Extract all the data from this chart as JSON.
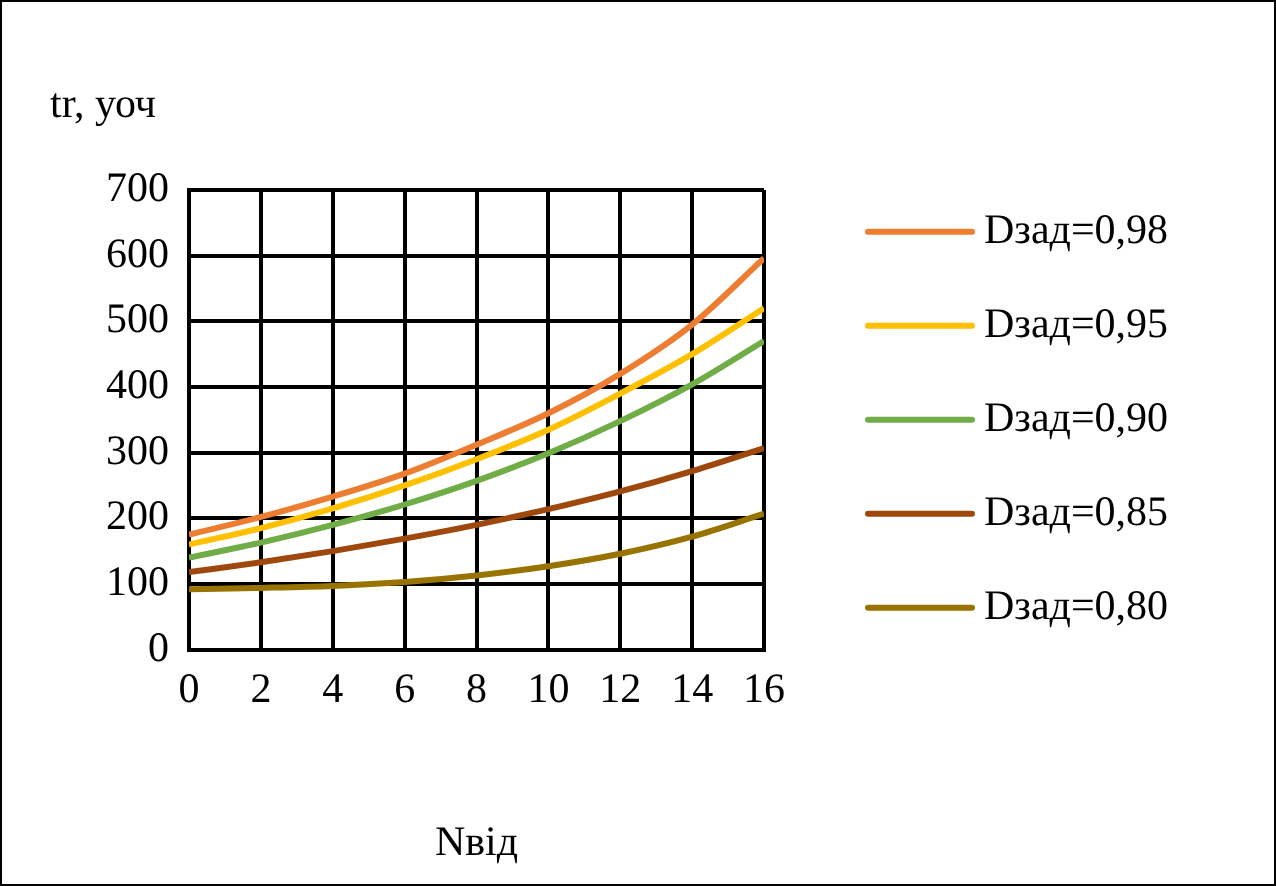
{
  "chart_data": {
    "type": "line",
    "ylabel": "tr, уоч",
    "xlabel": "Nвід",
    "x": [
      0,
      2,
      4,
      6,
      8,
      10,
      12,
      14,
      16
    ],
    "series": [
      {
        "name": "Dзад=0,98",
        "color": "#ed7d31",
        "values": [
          175,
          202,
          233,
          268,
          312,
          360,
          420,
          495,
          596
        ]
      },
      {
        "name": "Dзад=0,95",
        "color": "#ffc000",
        "values": [
          160,
          185,
          215,
          250,
          290,
          335,
          390,
          450,
          520
        ]
      },
      {
        "name": "Dзад=0,90",
        "color": "#70ad47",
        "values": [
          140,
          163,
          190,
          221,
          257,
          299,
          348,
          404,
          470
        ]
      },
      {
        "name": "Dзад=0,85",
        "color": "#9e480e",
        "values": [
          118,
          133,
          150,
          169,
          190,
          214,
          241,
          272,
          307
        ]
      },
      {
        "name": "Dзад=0,80",
        "color": "#997300",
        "values": [
          92,
          94,
          97,
          103,
          113,
          127,
          146,
          172,
          207
        ]
      }
    ],
    "xlim": [
      0,
      16
    ],
    "xticks": [
      0,
      2,
      4,
      6,
      8,
      10,
      12,
      14,
      16
    ],
    "ylim": [
      0,
      700
    ],
    "yticks": [
      0,
      100,
      200,
      300,
      400,
      500,
      600,
      700
    ],
    "grid": true,
    "legend": "right",
    "marker": "none",
    "line_style": "solid"
  }
}
